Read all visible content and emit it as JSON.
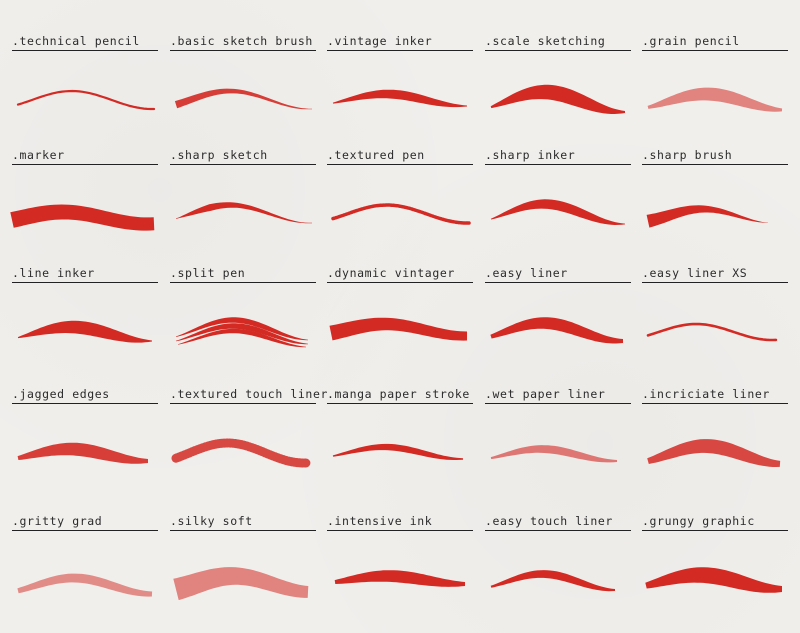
{
  "stroke_color": "#d42a24",
  "brushes": [
    {
      "label": ".technical pencil",
      "style": "technical"
    },
    {
      "label": ".basic sketch brush",
      "style": "sketch"
    },
    {
      "label": ".vintage inker",
      "style": "vintage"
    },
    {
      "label": ".scale sketching",
      "style": "scale"
    },
    {
      "label": ".grain pencil",
      "style": "grain"
    },
    {
      "label": ".marker",
      "style": "marker"
    },
    {
      "label": ".sharp sketch",
      "style": "sharpsketch"
    },
    {
      "label": ".textured pen",
      "style": "texturedpen"
    },
    {
      "label": ".sharp inker",
      "style": "sharpinker"
    },
    {
      "label": ".sharp brush",
      "style": "sharpbrush"
    },
    {
      "label": ".line inker",
      "style": "lineinker"
    },
    {
      "label": ".split pen",
      "style": "split"
    },
    {
      "label": ".dynamic vintager",
      "style": "dynamic"
    },
    {
      "label": ".easy liner",
      "style": "easyliner"
    },
    {
      "label": ".easy liner XS",
      "style": "easylinerxs"
    },
    {
      "label": ".jagged edges",
      "style": "jagged"
    },
    {
      "label": ".textured touch liner",
      "style": "speckle"
    },
    {
      "label": ".manga paper stroke",
      "style": "manga"
    },
    {
      "label": ".wet paper liner",
      "style": "wet"
    },
    {
      "label": ".incriciate liner",
      "style": "incriciate"
    },
    {
      "label": ".gritty grad",
      "style": "gritty"
    },
    {
      "label": ".silky soft",
      "style": "silky"
    },
    {
      "label": ".intensive ink",
      "style": "intensive"
    },
    {
      "label": ".easy touch liner",
      "style": "easytouch"
    },
    {
      "label": ".grungy graphic",
      "style": "grungy"
    }
  ]
}
